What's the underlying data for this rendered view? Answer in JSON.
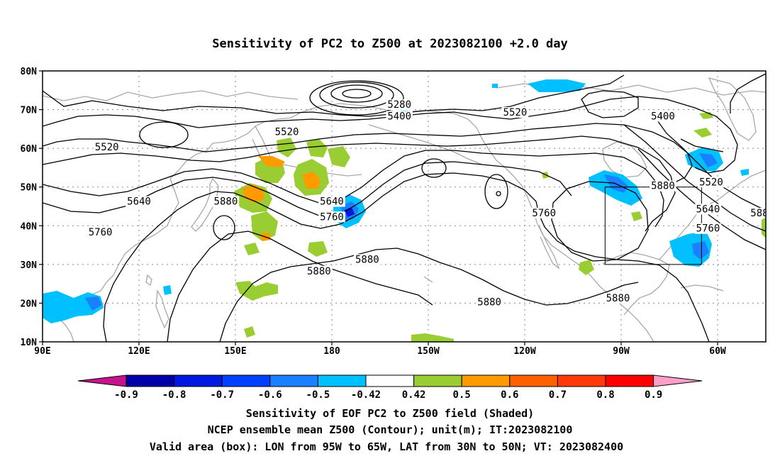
{
  "title": "Sensitivity of PC2 to Z500 at 2023082100 +2.0 day",
  "map": {
    "lat_labels": [
      "80N",
      "70N",
      "60N",
      "50N",
      "40N",
      "30N",
      "20N",
      "10N"
    ],
    "lat_values": [
      80,
      70,
      60,
      50,
      40,
      30,
      20,
      10
    ],
    "lon_labels": [
      "90E",
      "120E",
      "150E",
      "180",
      "150W",
      "120W",
      "90W",
      "60W"
    ],
    "lon_values": [
      90,
      120,
      150,
      180,
      210,
      240,
      270,
      300
    ],
    "lon_range": [
      90,
      315
    ],
    "lat_range": [
      10,
      80
    ],
    "contour_labels": [
      {
        "text": "5280",
        "lon": 201,
        "lat": 71
      },
      {
        "text": "5400",
        "lon": 201,
        "lat": 68
      },
      {
        "text": "5520",
        "lon": 237,
        "lat": 69
      },
      {
        "text": "5400",
        "lon": 283,
        "lat": 68
      },
      {
        "text": "5520",
        "lon": 166,
        "lat": 64
      },
      {
        "text": "5520",
        "lon": 110,
        "lat": 60
      },
      {
        "text": "5520",
        "lon": 298,
        "lat": 51
      },
      {
        "text": "5640",
        "lon": 120,
        "lat": 46
      },
      {
        "text": "5640",
        "lon": 180,
        "lat": 46
      },
      {
        "text": "5640",
        "lon": 297,
        "lat": 44
      },
      {
        "text": "5880",
        "lon": 147,
        "lat": 46
      },
      {
        "text": "5880",
        "lon": 283,
        "lat": 50
      },
      {
        "text": "5760",
        "lon": 108,
        "lat": 38
      },
      {
        "text": "5760",
        "lon": 180,
        "lat": 42
      },
      {
        "text": "5760",
        "lon": 246,
        "lat": 43
      },
      {
        "text": "5760",
        "lon": 297,
        "lat": 39
      },
      {
        "text": "5880",
        "lon": 176,
        "lat": 28
      },
      {
        "text": "5880",
        "lon": 191,
        "lat": 31
      },
      {
        "text": "5880",
        "lon": 229,
        "lat": 20
      },
      {
        "text": "5880",
        "lon": 269,
        "lat": 21
      },
      {
        "text": "588",
        "lon": 313,
        "lat": 43
      }
    ],
    "valid_box": {
      "lon_west": 265,
      "lon_east": 295,
      "lat_south": 30,
      "lat_north": 50
    }
  },
  "colorbar": {
    "labels": [
      "-0.9",
      "-0.8",
      "-0.7",
      "-0.6",
      "-0.5",
      "-0.42",
      "0.42",
      "0.5",
      "0.6",
      "0.7",
      "0.8",
      "0.9"
    ],
    "colors": [
      "#0000a8",
      "#0018e0",
      "#0040ff",
      "#1a80ff",
      "#00c0ff",
      "#ffffff",
      "#9acd32",
      "#ff9a00",
      "#ff6000",
      "#ff3a0a",
      "#ff0000"
    ],
    "low_extend_color": "#c8148c",
    "high_extend_color": "#ff9ec8"
  },
  "caption": {
    "line1": "Sensitivity of EOF PC2 to Z500 field (Shaded)",
    "line2": "NCEP ensemble mean Z500 (Contour); unit(m); IT:2023082100",
    "line3": "Valid area (box): LON from 95W to 65W, LAT from 30N to 50N; VT: 2023082400"
  }
}
